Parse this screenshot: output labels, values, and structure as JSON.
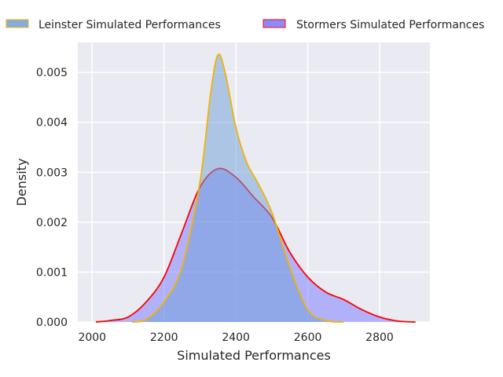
{
  "chart_data": {
    "type": "area",
    "title": "",
    "xlabel": "Simulated Performances",
    "ylabel": "Density",
    "xlim": [
      1960,
      2940
    ],
    "ylim": [
      0,
      0.0056
    ],
    "xticks": [
      2000,
      2200,
      2400,
      2600,
      2800
    ],
    "xtick_labels": [
      "2000",
      "2200",
      "2400",
      "2600",
      "2800"
    ],
    "yticks": [
      0,
      0.001,
      0.002,
      0.003,
      0.004,
      0.005
    ],
    "ytick_labels": [
      "0.000",
      "0.001",
      "0.002",
      "0.003",
      "0.004",
      "0.005"
    ],
    "grid": true,
    "legend_position": "top",
    "series": [
      {
        "name": "Stormers Simulated Performances",
        "fill": "#7878ff",
        "edge": "#ff0000",
        "x": [
          2010,
          2050,
          2100,
          2150,
          2200,
          2250,
          2300,
          2350,
          2400,
          2450,
          2500,
          2550,
          2600,
          2650,
          2700,
          2750,
          2800,
          2850,
          2900
        ],
        "y": [
          0,
          3e-05,
          0.0001,
          0.0004,
          0.0009,
          0.0018,
          0.0027,
          0.00307,
          0.0029,
          0.0025,
          0.0021,
          0.0014,
          0.0009,
          0.0006,
          0.00045,
          0.00025,
          0.0001,
          2e-05,
          0
        ]
      },
      {
        "name": "Leinster Simulated Performances",
        "fill": "#6f9fd6",
        "edge": "#f0b400",
        "x": [
          2110,
          2150,
          2200,
          2250,
          2300,
          2330,
          2350,
          2370,
          2400,
          2430,
          2460,
          2500,
          2550,
          2600,
          2650,
          2700
        ],
        "y": [
          0,
          5e-05,
          0.0004,
          0.0011,
          0.0028,
          0.0046,
          0.00535,
          0.005,
          0.0039,
          0.0032,
          0.0028,
          0.0022,
          0.0011,
          0.00025,
          3e-05,
          0
        ]
      }
    ]
  }
}
